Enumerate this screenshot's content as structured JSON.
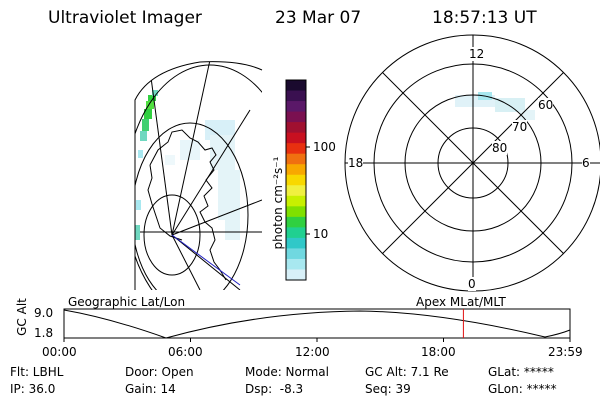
{
  "header": {
    "instrument": "Ultraviolet Imager",
    "date": "23 Mar 07",
    "time": "18:57:13 UT"
  },
  "colorbar": {
    "label": "photon cm⁻²s⁻¹",
    "ticks": [
      "100",
      "10"
    ],
    "colors": [
      "#1a0a2e",
      "#3a1050",
      "#5a1868",
      "#7a1050",
      "#a01030",
      "#c81020",
      "#e83010",
      "#f07010",
      "#f8a800",
      "#f8d800",
      "#f0f040",
      "#c8f000",
      "#80e000",
      "#30d040",
      "#20d090",
      "#30c8c8",
      "#70d8e0",
      "#a8e8f0",
      "#d8f0f8"
    ]
  },
  "polar_plot": {
    "mlt_labels": [
      "12",
      "18",
      "6",
      "0"
    ],
    "lat_labels": [
      "60",
      "70",
      "80"
    ]
  },
  "timeline": {
    "y_axis_label": "GC Alt",
    "y_ticks": [
      "9.0",
      "1.8"
    ],
    "left_label": "Geographic Lat/Lon",
    "right_label": "Apex MLat/MLT",
    "x_ticks": [
      "00:00",
      "06:00",
      "12:00",
      "18:00",
      "23:59"
    ],
    "marker_fraction": 0.7894
  },
  "info": {
    "filter": "Flt: LBHL",
    "door": "Door: Open",
    "mode": "Mode: Normal",
    "gc_alt": "GC Alt: 7.1 Re",
    "glat": "GLat: *****",
    "ip": "IP: 36.0",
    "gain": "Gain: 14",
    "dsp": "Dsp:  -8.3",
    "seq": "Seq: 39",
    "glon": "GLon: *****"
  }
}
